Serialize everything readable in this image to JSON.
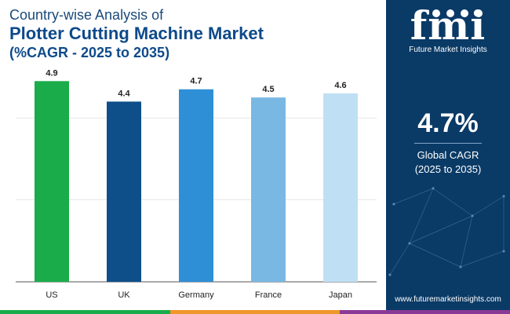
{
  "header": {
    "title_line1": "Country-wise Analysis of",
    "title_line2": "Plotter Cutting Machine Market",
    "title_line3": "(%CAGR - 2025 to 2035)"
  },
  "chart_data": {
    "type": "bar",
    "categories": [
      "US",
      "UK",
      "Germany",
      "France",
      "Japan"
    ],
    "values": [
      4.9,
      4.4,
      4.7,
      4.5,
      4.6
    ],
    "data_labels": [
      "4.9",
      "4.4",
      "4.7",
      "4.5",
      "4.6"
    ],
    "colors": [
      "#1aac4a",
      "#0e4f8a",
      "#2f8fd6",
      "#79b8e3",
      "#bfe0f4"
    ],
    "ylim": [
      0,
      5.5
    ],
    "gridlines": [
      0,
      2,
      4
    ],
    "grid": true,
    "xlabel": "",
    "ylabel": ""
  },
  "side_panel": {
    "logo_text": "fmi",
    "logo_subtitle": "Future Market Insights",
    "stat_value": "4.7%",
    "stat_label_line1": "Global CAGR",
    "stat_label_line2": "(2025 to 2035)",
    "website": "www.futuremarketinsights.com",
    "background_color": "#0a3a66"
  },
  "bottom_bar_colors": [
    "#1aac4a",
    "#f0962a",
    "#8a3a96"
  ]
}
